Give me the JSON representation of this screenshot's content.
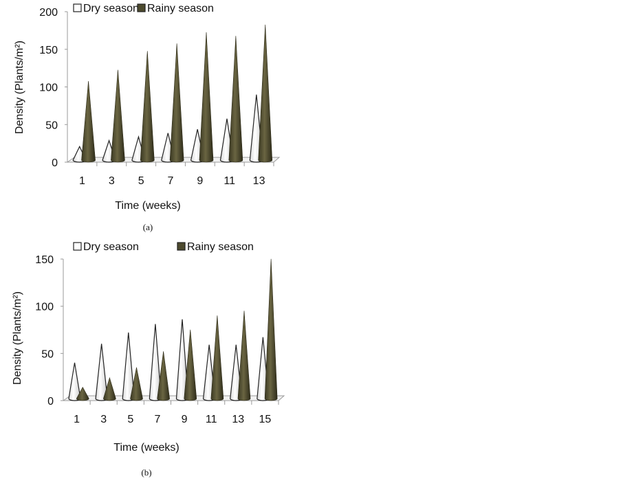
{
  "chart_data": [
    {
      "type": "bar",
      "style": "3d-cone",
      "caption": "(a)",
      "xlabel": "Time (weeks)",
      "ylabel": "Density (Plants/m²)",
      "ylim": [
        0,
        200
      ],
      "yticks": [
        "0",
        "50",
        "100",
        "150",
        "200"
      ],
      "categories": [
        "1",
        "3",
        "5",
        "7",
        "9",
        "11",
        "13"
      ],
      "legend_position": "top",
      "series": [
        {
          "name": "Dry season",
          "color": "#ffffff",
          "values": [
            18,
            26,
            31,
            36,
            41,
            55,
            87
          ]
        },
        {
          "name": "Rainy season",
          "color": "#4d4a2e",
          "values": [
            105,
            120,
            145,
            155,
            170,
            165,
            180
          ]
        }
      ]
    },
    {
      "type": "bar",
      "style": "3d-cone",
      "caption": "(b)",
      "xlabel": "Time (weeks)",
      "ylabel": "Density (Plants/m²)",
      "ylim": [
        0,
        150
      ],
      "yticks": [
        "0",
        "50",
        "100",
        "150"
      ],
      "categories": [
        "1",
        "3",
        "5",
        "7",
        "9",
        "11",
        "13",
        "15"
      ],
      "legend_position": "top",
      "series": [
        {
          "name": "Dry season",
          "color": "#ffffff",
          "values": [
            38,
            58,
            70,
            79,
            84,
            57,
            57,
            65
          ]
        },
        {
          "name": "Rainy season",
          "color": "#4d4a2e",
          "values": [
            12,
            22,
            33,
            50,
            73,
            88,
            93,
            148
          ]
        }
      ]
    }
  ]
}
